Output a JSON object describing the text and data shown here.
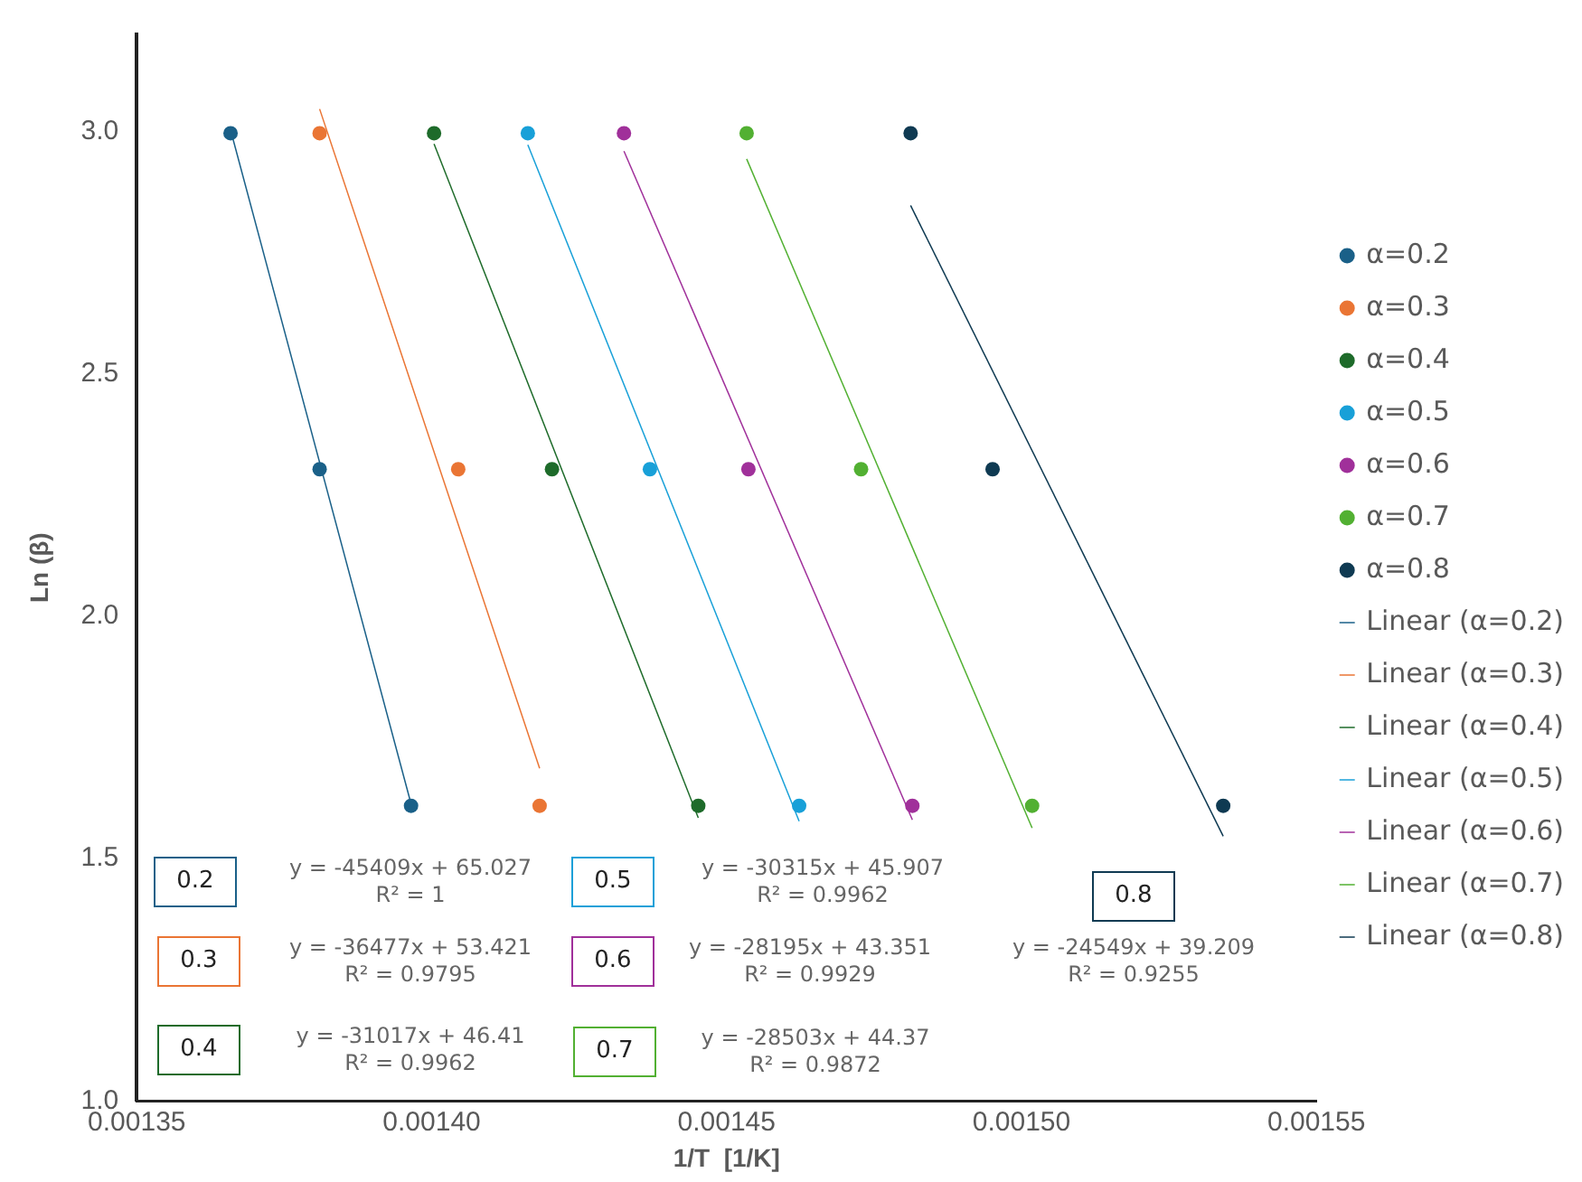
{
  "chart_data": {
    "type": "scatter",
    "xlabel": "1/T  [1/K]",
    "ylabel": "Ln (β)",
    "xlim": [
      0.00135,
      0.00155
    ],
    "xticks": [
      {
        "value": 0.00135,
        "label": "0.00135"
      },
      {
        "value": 0.0014,
        "label": "0.00140"
      },
      {
        "value": 0.00145,
        "label": "0.00145"
      },
      {
        "value": 0.0015,
        "label": "0.00150"
      },
      {
        "value": 0.00155,
        "label": "0.00155"
      }
    ],
    "ylim": [
      1,
      3.2
    ],
    "yticks": [
      {
        "value": 1,
        "label": "1.0"
      },
      {
        "value": 1.5,
        "label": "1.5"
      },
      {
        "value": 2,
        "label": "2.0"
      },
      {
        "value": 2.5,
        "label": "2.5"
      },
      {
        "value": 3,
        "label": "3.0"
      }
    ],
    "legend": "right",
    "marker": "circle",
    "series": [
      {
        "name": "α=0.2",
        "type": "scatter",
        "color": "#1a6088",
        "x": [
          0.0013659,
          0.001381,
          0.0013965
        ],
        "values": [
          2.996,
          2.303,
          1.609
        ]
      },
      {
        "name": "α=0.3",
        "type": "scatter",
        "color": "#ea7534",
        "x": [
          0.001381,
          0.0014045,
          0.0014183
        ],
        "values": [
          2.996,
          2.303,
          1.609
        ]
      },
      {
        "name": "α=0.4",
        "type": "scatter",
        "color": "#1e6b2a",
        "x": [
          0.0014004,
          0.0014204,
          0.0014452
        ],
        "values": [
          2.996,
          2.303,
          1.609
        ]
      },
      {
        "name": "α=0.5",
        "type": "scatter",
        "color": "#18a0d8",
        "x": [
          0.0014163,
          0.001437,
          0.0014623
        ],
        "values": [
          2.996,
          2.303,
          1.609
        ]
      },
      {
        "name": "α=0.6",
        "type": "scatter",
        "color": "#a0309a",
        "x": [
          0.0014326,
          0.0014537,
          0.0014815
        ],
        "values": [
          2.996,
          2.303,
          1.609
        ]
      },
      {
        "name": "α=0.7",
        "type": "scatter",
        "color": "#52b032",
        "x": [
          0.0014534,
          0.0014728,
          0.0015018
        ],
        "values": [
          2.996,
          2.303,
          1.609
        ]
      },
      {
        "name": "α=0.8",
        "type": "scatter",
        "color": "#0f3a52",
        "x": [
          0.0014812,
          0.0014951,
          0.0015342
        ],
        "values": [
          2.996,
          2.303,
          1.609
        ]
      },
      {
        "name": "Linear (α=0.2)",
        "type": "line",
        "marker": "none",
        "color": "#1a6088",
        "x": [
          0.0013659,
          0.0013965
        ],
        "values": [
          3.003,
          1.613
        ]
      },
      {
        "name": "Linear (α=0.3)",
        "type": "line",
        "marker": "none",
        "color": "#ea7534",
        "x": [
          0.001381,
          0.0014183
        ],
        "values": [
          3.046,
          1.686
        ]
      },
      {
        "name": "Linear (α=0.4)",
        "type": "line",
        "marker": "none",
        "color": "#1e6b2a",
        "x": [
          0.0014004,
          0.0014452
        ],
        "values": [
          2.974,
          1.584
        ]
      },
      {
        "name": "Linear (α=0.5)",
        "type": "line",
        "marker": "none",
        "color": "#18a0d8",
        "x": [
          0.0014163,
          0.0014623
        ],
        "values": [
          2.972,
          1.577
        ]
      },
      {
        "name": "Linear (α=0.6)",
        "type": "line",
        "marker": "none",
        "color": "#a0309a",
        "x": [
          0.0014326,
          0.0014815
        ],
        "values": [
          2.959,
          1.58
        ]
      },
      {
        "name": "Linear (α=0.7)",
        "type": "line",
        "marker": "none",
        "color": "#52b032",
        "x": [
          0.0014534,
          0.0015018
        ],
        "values": [
          2.943,
          1.563
        ]
      },
      {
        "name": "Linear (α=0.8)",
        "type": "line",
        "marker": "none",
        "color": "#0f3a52",
        "x": [
          0.0014812,
          0.0015342
        ],
        "values": [
          2.847,
          1.546
        ]
      }
    ],
    "annotations": [
      "0.2",
      "y = -45409x + 65.027\nR² = 1",
      "0.3",
      "y = -36477x + 53.421\nR² = 0.9795",
      "0.4",
      "y = -31017x + 46.41\nR² = 0.9962",
      "0.5",
      "y = -30315x + 45.907\nR² = 0.9962",
      "0.6",
      "y = -28195x + 43.351\nR² = 0.9929",
      "0.7",
      "y = -28503x + 44.37\nR² = 0.9872",
      "0.8",
      "y = -24549x + 39.209\nR² = 0.9255"
    ]
  }
}
